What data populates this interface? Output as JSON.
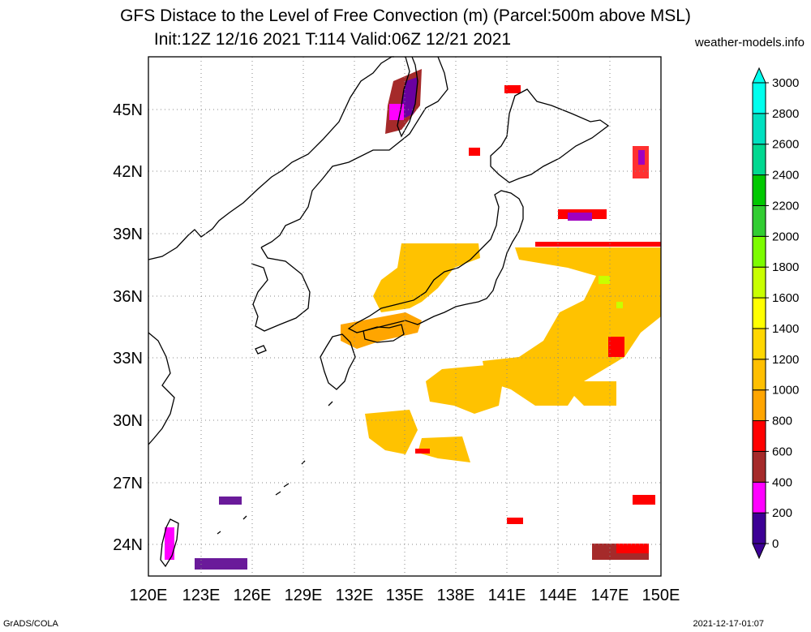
{
  "title": {
    "line1": "GFS Distace to the Level of Free Convection (m) (Parcel:500m above MSL)",
    "line2": "Init:12Z 12/16 2021 T:114 Valid:06Z 12/21 2021"
  },
  "site": "weather-models.info",
  "footer": {
    "left": "GrADS/COLA",
    "right": "2021-12-17-01:07"
  },
  "map": {
    "lon_labels": [
      "120E",
      "123E",
      "126E",
      "129E",
      "132E",
      "135E",
      "138E",
      "141E",
      "144E",
      "147E",
      "150E"
    ],
    "lat_labels": [
      "24N",
      "27N",
      "30N",
      "33N",
      "36N",
      "39N",
      "42N",
      "45N"
    ],
    "lon_range": [
      120,
      150
    ],
    "lat_range": [
      22.5,
      47.5
    ],
    "grid": true
  },
  "colorbar": {
    "labels": [
      "0",
      "200",
      "400",
      "600",
      "800",
      "1000",
      "1200",
      "1400",
      "1600",
      "1800",
      "2000",
      "2200",
      "2400",
      "2600",
      "2800",
      "3000"
    ],
    "colors": [
      "#3c0095",
      "#ff00ff",
      "#a52a2a",
      "#ff0000",
      "#ffa500",
      "#ffbf00",
      "#ffd700",
      "#ffff00",
      "#c8ff00",
      "#7cfc00",
      "#32cd32",
      "#00c800",
      "#00d890",
      "#00e0c0",
      "#00ffee"
    ]
  }
}
